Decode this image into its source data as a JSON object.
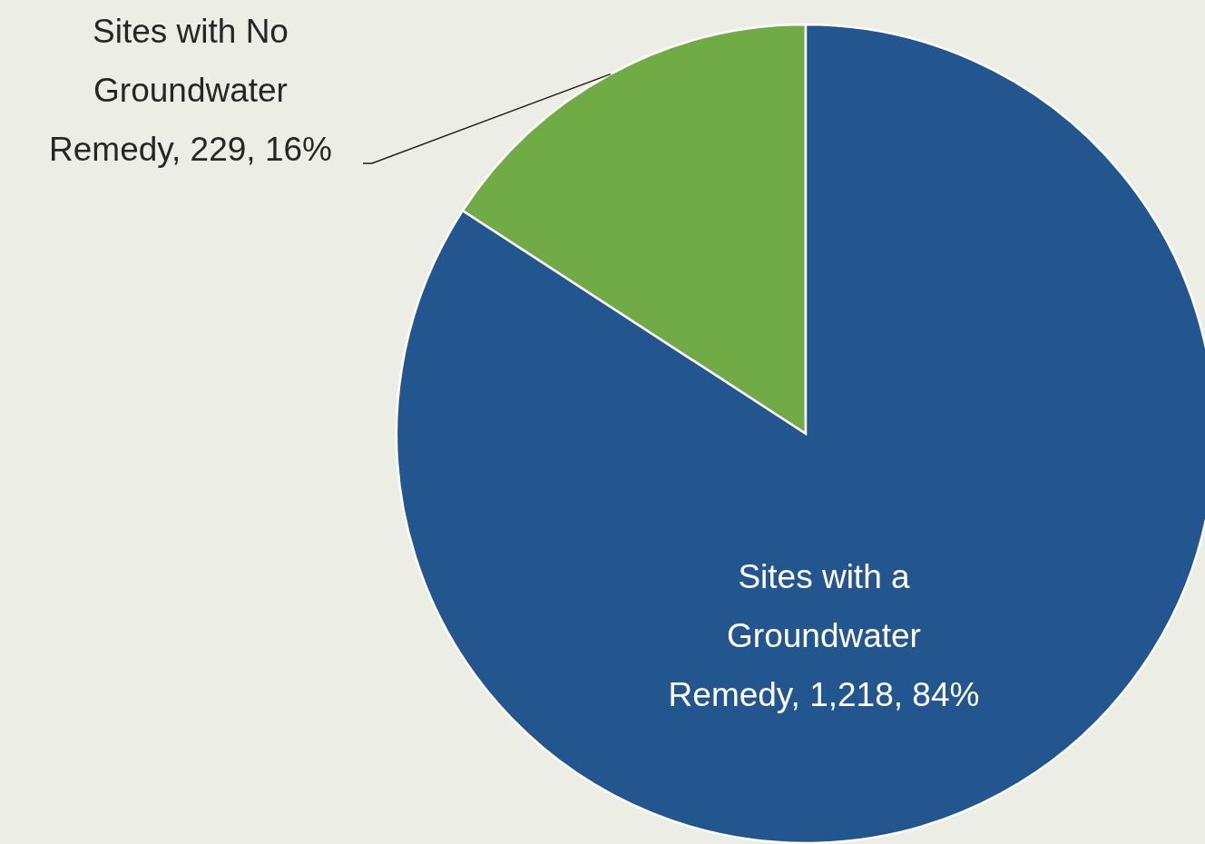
{
  "chart_data": {
    "type": "pie",
    "categories": [
      "Sites with No Groundwater Remedy",
      "Sites with a Groundwater Remedy"
    ],
    "values": [
      229,
      1218
    ],
    "value_labels": [
      "229, 16%",
      "1,218, 84%"
    ],
    "colors": [
      "#70ab46",
      "#23568f"
    ]
  }
}
